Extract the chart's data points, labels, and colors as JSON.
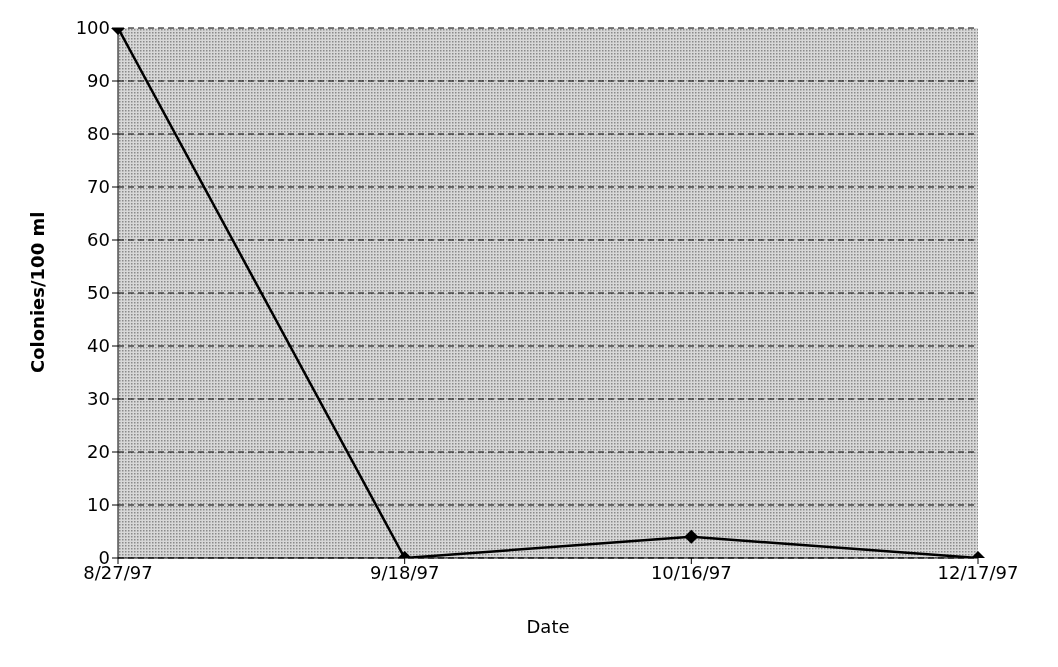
{
  "chart_data": {
    "type": "line",
    "xlabel": "Date",
    "ylabel": "Colonies/100 ml",
    "categories": [
      "8/27/97",
      "9/18/97",
      "10/16/97",
      "12/17/97"
    ],
    "series": [
      {
        "color": "#000000",
        "values": [
          100,
          0,
          4,
          0
        ]
      }
    ],
    "ylim": [
      0,
      100
    ],
    "yticks": [
      0,
      10,
      20,
      30,
      40,
      50,
      60,
      70,
      80,
      90,
      100
    ],
    "grid": "y",
    "marker": "diamond",
    "line_style": "solid",
    "legend": false
  }
}
